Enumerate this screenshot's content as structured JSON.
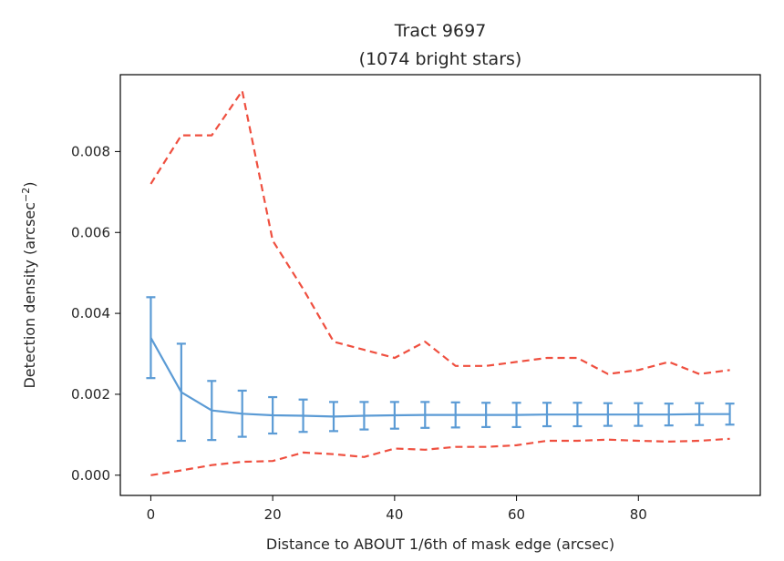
{
  "chart_data": {
    "type": "line",
    "title": "Tract 9697",
    "subtitle": "(1074 bright stars)",
    "xlabel": "Distance to ABOUT 1/6th of mask edge (arcsec)",
    "ylabel": "Detection density (arcsec",
    "ylabel_exponent": "−2",
    "ylabel_close": ")",
    "xlim": [
      -5,
      100
    ],
    "ylim": [
      -0.0005,
      0.0099
    ],
    "xticks": [
      0,
      20,
      40,
      60,
      80
    ],
    "xtick_labels": [
      "0",
      "20",
      "40",
      "60",
      "80"
    ],
    "yticks": [
      0.0,
      0.002,
      0.004,
      0.006,
      0.008
    ],
    "ytick_labels": [
      "0.000",
      "0.002",
      "0.004",
      "0.006",
      "0.008"
    ],
    "grid": false,
    "x": [
      0,
      5,
      10,
      15,
      20,
      25,
      30,
      35,
      40,
      45,
      50,
      55,
      60,
      65,
      70,
      75,
      80,
      85,
      90,
      95
    ],
    "series": [
      {
        "style": "solid",
        "color": "#5b9bd5",
        "values": [
          0.0034,
          0.00205,
          0.0016,
          0.00152,
          0.00148,
          0.00147,
          0.00145,
          0.00147,
          0.00148,
          0.00149,
          0.00149,
          0.00149,
          0.00149,
          0.0015,
          0.0015,
          0.0015,
          0.0015,
          0.0015,
          0.00151,
          0.00151
        ],
        "error": [
          0.001,
          0.0012,
          0.00073,
          0.00057,
          0.00045,
          0.0004,
          0.00036,
          0.00034,
          0.00033,
          0.00032,
          0.00031,
          0.0003,
          0.0003,
          0.00029,
          0.00029,
          0.00028,
          0.00028,
          0.00027,
          0.00027,
          0.00026
        ]
      },
      {
        "style": "dashed",
        "color": "#ef4f3f",
        "values": [
          0.0072,
          0.0084,
          0.0084,
          0.0095,
          0.0058,
          0.0046,
          0.0033,
          0.0031,
          0.0029,
          0.0033,
          0.0027,
          0.0027,
          0.0028,
          0.0029,
          0.0029,
          0.0025,
          0.0026,
          0.0028,
          0.0025,
          0.0026
        ]
      },
      {
        "style": "dashed",
        "color": "#ef4f3f",
        "values": [
          0.0,
          0.00012,
          0.00025,
          0.00033,
          0.00035,
          0.00056,
          0.00052,
          0.00045,
          0.00066,
          0.00063,
          0.0007,
          0.0007,
          0.00074,
          0.00085,
          0.00085,
          0.00088,
          0.00085,
          0.00083,
          0.00085,
          0.0009
        ]
      }
    ]
  }
}
